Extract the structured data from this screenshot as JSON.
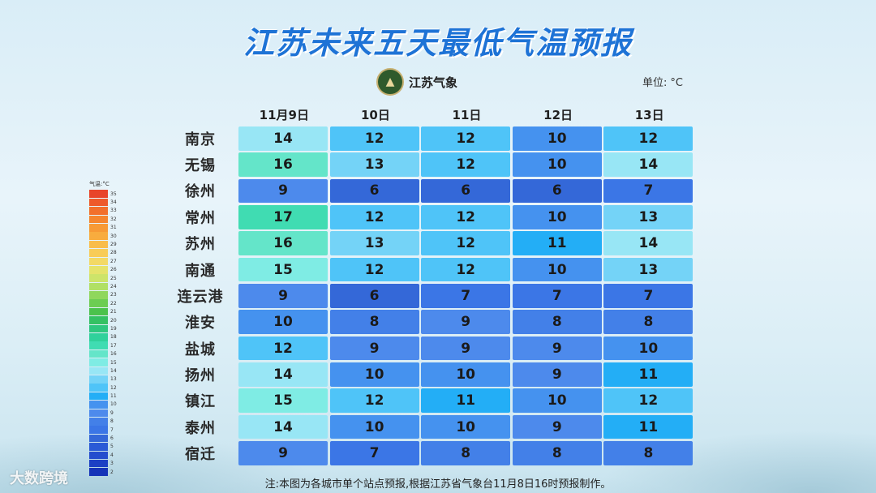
{
  "title": "江苏未来五天最低气温预报",
  "logo": {
    "text": "江苏气象",
    "icon": "weather-bureau-emblem-icon"
  },
  "unit": {
    "label": "单位:",
    "value": "°C"
  },
  "dates": [
    "11月9日",
    "10日",
    "11日",
    "12日",
    "13日"
  ],
  "rows": [
    {
      "city": "南京",
      "temps": [
        14,
        12,
        12,
        10,
        12
      ]
    },
    {
      "city": "无锡",
      "temps": [
        16,
        13,
        12,
        10,
        14
      ]
    },
    {
      "city": "徐州",
      "temps": [
        9,
        6,
        6,
        6,
        7
      ]
    },
    {
      "city": "常州",
      "temps": [
        17,
        12,
        12,
        10,
        13
      ]
    },
    {
      "city": "苏州",
      "temps": [
        16,
        13,
        12,
        11,
        14
      ]
    },
    {
      "city": "南通",
      "temps": [
        15,
        12,
        12,
        10,
        13
      ]
    },
    {
      "city": "连云港",
      "temps": [
        9,
        6,
        7,
        7,
        7
      ]
    },
    {
      "city": "淮安",
      "temps": [
        10,
        8,
        9,
        8,
        8
      ]
    },
    {
      "city": "盐城",
      "temps": [
        12,
        9,
        9,
        9,
        10
      ]
    },
    {
      "city": "扬州",
      "temps": [
        14,
        10,
        10,
        9,
        11
      ]
    },
    {
      "city": "镇江",
      "temps": [
        15,
        12,
        11,
        10,
        12
      ]
    },
    {
      "city": "泰州",
      "temps": [
        14,
        10,
        10,
        9,
        11
      ]
    },
    {
      "city": "宿迁",
      "temps": [
        9,
        7,
        8,
        8,
        8
      ]
    }
  ],
  "legend": {
    "title": "气温:°C",
    "items": [
      {
        "label": "35",
        "color": "#e8442a"
      },
      {
        "label": "34",
        "color": "#ee5a2b"
      },
      {
        "label": "33",
        "color": "#f2702c"
      },
      {
        "label": "32",
        "color": "#f5862f"
      },
      {
        "label": "31",
        "color": "#f79a35"
      },
      {
        "label": "30",
        "color": "#f8ac3e"
      },
      {
        "label": "29",
        "color": "#f9bd4a"
      },
      {
        "label": "28",
        "color": "#f8cc58"
      },
      {
        "label": "27",
        "color": "#f3d965"
      },
      {
        "label": "26",
        "color": "#e5e36a"
      },
      {
        "label": "25",
        "color": "#cde46a"
      },
      {
        "label": "24",
        "color": "#b1e064"
      },
      {
        "label": "23",
        "color": "#8fd75c"
      },
      {
        "label": "22",
        "color": "#6ccd52"
      },
      {
        "label": "21",
        "color": "#4bc24c"
      },
      {
        "label": "20",
        "color": "#34c163"
      },
      {
        "label": "19",
        "color": "#2ec77f"
      },
      {
        "label": "18",
        "color": "#30d19b"
      },
      {
        "label": "17",
        "color": "#40dcb2"
      },
      {
        "label": "16",
        "color": "#64e5c9"
      },
      {
        "label": "15",
        "color": "#7fece4"
      },
      {
        "label": "14",
        "color": "#98e6f5"
      },
      {
        "label": "13",
        "color": "#74d3f7"
      },
      {
        "label": "12",
        "color": "#4fc4f8"
      },
      {
        "label": "11",
        "color": "#23aef6"
      },
      {
        "label": "10",
        "color": "#4592ef"
      },
      {
        "label": "9",
        "color": "#4d8aec"
      },
      {
        "label": "8",
        "color": "#4380e8"
      },
      {
        "label": "7",
        "color": "#3b76e6"
      },
      {
        "label": "6",
        "color": "#3468d8"
      },
      {
        "label": "5",
        "color": "#2a5ad6"
      },
      {
        "label": "4",
        "color": "#244dce"
      },
      {
        "label": "3",
        "color": "#1c40c4"
      },
      {
        "label": "2",
        "color": "#1533b8"
      }
    ]
  },
  "watermark": "大数跨境",
  "note": "注:本图为各城市单个站点预报,根据江苏省气象台11月8日16时预报制作。"
}
